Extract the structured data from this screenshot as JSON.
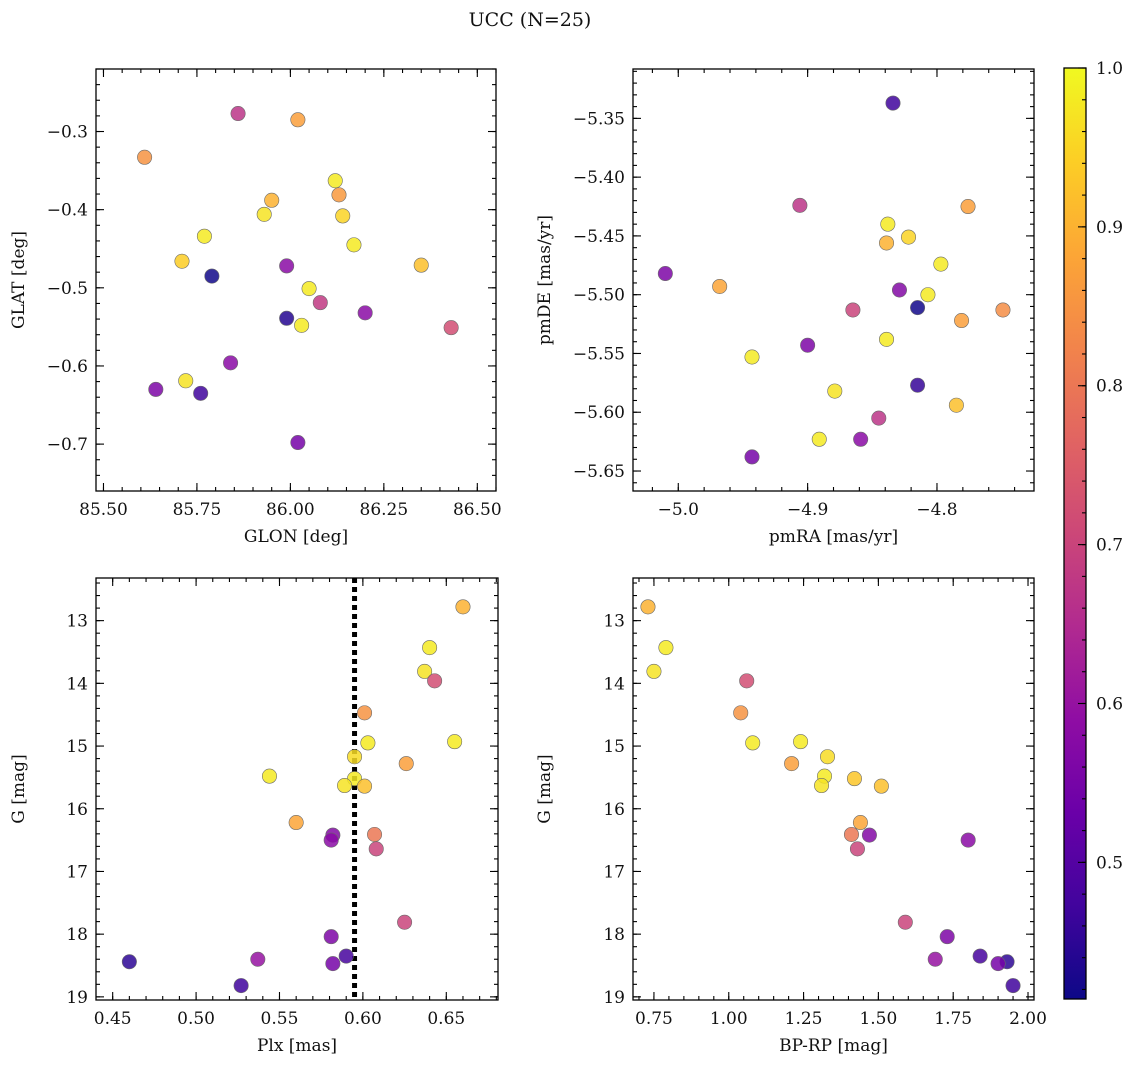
{
  "title": "UCC (N=25)",
  "colorbar": {
    "colormap": "plasma",
    "range": [
      0.414,
      1.0
    ],
    "ticks": [
      0.5,
      0.6,
      0.7,
      0.8,
      0.9,
      1.0
    ],
    "tick_labels": [
      "0.5",
      "0.6",
      "0.7",
      "0.8",
      "0.9",
      "1.0"
    ]
  },
  "chart_data": [
    {
      "type": "scatter",
      "xlabel": "GLON [deg]",
      "ylabel": "GLAT [deg]",
      "xlim": [
        85.48,
        86.55
      ],
      "ylim": [
        -0.76,
        -0.22
      ],
      "xticks": [
        85.5,
        85.75,
        86.0,
        86.25,
        86.5
      ],
      "xtick_labels": [
        "85.50",
        "85.75",
        "86.00",
        "86.25",
        "86.50"
      ],
      "yticks": [
        -0.3,
        -0.4,
        -0.5,
        -0.6,
        -0.7
      ],
      "ytick_labels": [
        "−0.3",
        "−0.4",
        "−0.5",
        "−0.6",
        "−0.7"
      ],
      "y_inverted": false,
      "points": [
        {
          "x": 85.86,
          "y": -0.277,
          "c": 0.67
        },
        {
          "x": 86.02,
          "y": -0.285,
          "c": 0.87
        },
        {
          "x": 85.61,
          "y": -0.333,
          "c": 0.85
        },
        {
          "x": 86.12,
          "y": -0.363,
          "c": 0.98
        },
        {
          "x": 86.13,
          "y": -0.381,
          "c": 0.86
        },
        {
          "x": 85.95,
          "y": -0.388,
          "c": 0.9
        },
        {
          "x": 85.93,
          "y": -0.406,
          "c": 0.97
        },
        {
          "x": 86.14,
          "y": -0.408,
          "c": 0.95
        },
        {
          "x": 85.77,
          "y": -0.434,
          "c": 0.98
        },
        {
          "x": 86.17,
          "y": -0.445,
          "c": 0.98
        },
        {
          "x": 85.71,
          "y": -0.466,
          "c": 0.94
        },
        {
          "x": 85.99,
          "y": -0.472,
          "c": 0.58
        },
        {
          "x": 86.35,
          "y": -0.471,
          "c": 0.92
        },
        {
          "x": 85.79,
          "y": -0.485,
          "c": 0.42
        },
        {
          "x": 86.05,
          "y": -0.501,
          "c": 0.98
        },
        {
          "x": 86.08,
          "y": -0.519,
          "c": 0.68
        },
        {
          "x": 86.2,
          "y": -0.532,
          "c": 0.58
        },
        {
          "x": 85.99,
          "y": -0.539,
          "c": 0.44
        },
        {
          "x": 86.03,
          "y": -0.548,
          "c": 0.98
        },
        {
          "x": 86.43,
          "y": -0.551,
          "c": 0.72
        },
        {
          "x": 85.84,
          "y": -0.596,
          "c": 0.58
        },
        {
          "x": 85.72,
          "y": -0.619,
          "c": 0.97
        },
        {
          "x": 85.64,
          "y": -0.63,
          "c": 0.56
        },
        {
          "x": 85.76,
          "y": -0.635,
          "c": 0.47
        },
        {
          "x": 86.02,
          "y": -0.698,
          "c": 0.55
        }
      ]
    },
    {
      "type": "scatter",
      "xlabel": "pmRA [mas/yr]",
      "ylabel": "pmDE [mas/yr]",
      "xlim": [
        -5.035,
        -4.725
      ],
      "ylim": [
        -5.667,
        -5.308
      ],
      "xticks": [
        -5.0,
        -4.9,
        -4.8
      ],
      "xtick_labels": [
        "−5.0",
        "−4.9",
        "−4.8"
      ],
      "yticks": [
        -5.35,
        -5.4,
        -5.45,
        -5.5,
        -5.55,
        -5.6,
        -5.65
      ],
      "ytick_labels": [
        "−5.35",
        "−5.40",
        "−5.45",
        "−5.50",
        "−5.55",
        "−5.60",
        "−5.65"
      ],
      "y_inverted": false,
      "points": [
        {
          "x": -4.834,
          "y": -5.337,
          "c": 0.47
        },
        {
          "x": -4.906,
          "y": -5.424,
          "c": 0.67
        },
        {
          "x": -4.776,
          "y": -5.425,
          "c": 0.87
        },
        {
          "x": -4.838,
          "y": -5.44,
          "c": 0.98
        },
        {
          "x": -4.822,
          "y": -5.451,
          "c": 0.95
        },
        {
          "x": -4.839,
          "y": -5.456,
          "c": 0.9
        },
        {
          "x": -4.797,
          "y": -5.474,
          "c": 0.98
        },
        {
          "x": -5.01,
          "y": -5.482,
          "c": 0.56
        },
        {
          "x": -4.968,
          "y": -5.493,
          "c": 0.88
        },
        {
          "x": -4.829,
          "y": -5.496,
          "c": 0.57
        },
        {
          "x": -4.807,
          "y": -5.5,
          "c": 0.98
        },
        {
          "x": -4.815,
          "y": -5.511,
          "c": 0.42
        },
        {
          "x": -4.865,
          "y": -5.513,
          "c": 0.7
        },
        {
          "x": -4.749,
          "y": -5.513,
          "c": 0.84
        },
        {
          "x": -4.781,
          "y": -5.522,
          "c": 0.87
        },
        {
          "x": -4.839,
          "y": -5.538,
          "c": 0.98
        },
        {
          "x": -4.9,
          "y": -5.543,
          "c": 0.56
        },
        {
          "x": -4.943,
          "y": -5.553,
          "c": 0.98
        },
        {
          "x": -4.815,
          "y": -5.577,
          "c": 0.46
        },
        {
          "x": -4.879,
          "y": -5.582,
          "c": 0.97
        },
        {
          "x": -4.785,
          "y": -5.594,
          "c": 0.92
        },
        {
          "x": -4.845,
          "y": -5.605,
          "c": 0.67
        },
        {
          "x": -4.891,
          "y": -5.623,
          "c": 0.98
        },
        {
          "x": -4.859,
          "y": -5.623,
          "c": 0.58
        },
        {
          "x": -4.943,
          "y": -5.638,
          "c": 0.55
        }
      ]
    },
    {
      "type": "scatter",
      "xlabel": "Plx [mas]",
      "ylabel": "G [mag]",
      "xlim": [
        0.44,
        0.681
      ],
      "ylim": [
        12.32,
        19.05
      ],
      "xticks": [
        0.45,
        0.5,
        0.55,
        0.6,
        0.65
      ],
      "xtick_labels": [
        "0.45",
        "0.50",
        "0.55",
        "0.60",
        "0.65"
      ],
      "yticks": [
        13,
        14,
        15,
        16,
        17,
        18,
        19
      ],
      "ytick_labels": [
        "13",
        "14",
        "15",
        "16",
        "17",
        "18",
        "19"
      ],
      "y_inverted": true,
      "vline": {
        "x": 0.595,
        "style": "dotted"
      },
      "points": [
        {
          "x": 0.66,
          "y": 12.78,
          "c": 0.9
        },
        {
          "x": 0.64,
          "y": 13.43,
          "c": 0.98
        },
        {
          "x": 0.637,
          "y": 13.81,
          "c": 0.97
        },
        {
          "x": 0.643,
          "y": 13.96,
          "c": 0.72
        },
        {
          "x": 0.601,
          "y": 14.47,
          "c": 0.85
        },
        {
          "x": 0.603,
          "y": 14.95,
          "c": 0.98
        },
        {
          "x": 0.655,
          "y": 14.93,
          "c": 0.98
        },
        {
          "x": 0.595,
          "y": 15.17,
          "c": 0.96
        },
        {
          "x": 0.626,
          "y": 15.28,
          "c": 0.87
        },
        {
          "x": 0.544,
          "y": 15.48,
          "c": 0.98
        },
        {
          "x": 0.595,
          "y": 15.52,
          "c": 0.98
        },
        {
          "x": 0.589,
          "y": 15.63,
          "c": 0.97
        },
        {
          "x": 0.601,
          "y": 15.64,
          "c": 0.92
        },
        {
          "x": 0.56,
          "y": 16.22,
          "c": 0.88
        },
        {
          "x": 0.582,
          "y": 16.42,
          "c": 0.57
        },
        {
          "x": 0.607,
          "y": 16.41,
          "c": 0.8
        },
        {
          "x": 0.581,
          "y": 16.5,
          "c": 0.58
        },
        {
          "x": 0.608,
          "y": 16.64,
          "c": 0.7
        },
        {
          "x": 0.625,
          "y": 17.81,
          "c": 0.7
        },
        {
          "x": 0.581,
          "y": 18.04,
          "c": 0.56
        },
        {
          "x": 0.59,
          "y": 18.35,
          "c": 0.48
        },
        {
          "x": 0.537,
          "y": 18.4,
          "c": 0.6
        },
        {
          "x": 0.46,
          "y": 18.44,
          "c": 0.45
        },
        {
          "x": 0.582,
          "y": 18.47,
          "c": 0.55
        },
        {
          "x": 0.527,
          "y": 18.82,
          "c": 0.47
        }
      ]
    },
    {
      "type": "scatter",
      "xlabel": "BP-RP [mag]",
      "ylabel": "G [mag]",
      "xlim": [
        0.68,
        2.02
      ],
      "ylim": [
        12.32,
        19.05
      ],
      "xticks": [
        0.75,
        1.0,
        1.25,
        1.5,
        1.75,
        2.0
      ],
      "xtick_labels": [
        "0.75",
        "1.00",
        "1.25",
        "1.50",
        "1.75",
        "2.00"
      ],
      "yticks": [
        13,
        14,
        15,
        16,
        17,
        18,
        19
      ],
      "ytick_labels": [
        "13",
        "14",
        "15",
        "16",
        "17",
        "18",
        "19"
      ],
      "y_inverted": true,
      "points": [
        {
          "x": 0.73,
          "y": 12.78,
          "c": 0.9
        },
        {
          "x": 0.79,
          "y": 13.43,
          "c": 0.98
        },
        {
          "x": 0.75,
          "y": 13.81,
          "c": 0.97
        },
        {
          "x": 1.06,
          "y": 13.96,
          "c": 0.72
        },
        {
          "x": 1.04,
          "y": 14.47,
          "c": 0.85
        },
        {
          "x": 1.08,
          "y": 14.95,
          "c": 0.98
        },
        {
          "x": 1.24,
          "y": 14.93,
          "c": 0.98
        },
        {
          "x": 1.33,
          "y": 15.17,
          "c": 0.96
        },
        {
          "x": 1.21,
          "y": 15.28,
          "c": 0.87
        },
        {
          "x": 1.32,
          "y": 15.48,
          "c": 0.98
        },
        {
          "x": 1.42,
          "y": 15.52,
          "c": 0.93
        },
        {
          "x": 1.31,
          "y": 15.63,
          "c": 0.97
        },
        {
          "x": 1.51,
          "y": 15.64,
          "c": 0.92
        },
        {
          "x": 1.44,
          "y": 16.22,
          "c": 0.88
        },
        {
          "x": 1.41,
          "y": 16.41,
          "c": 0.8
        },
        {
          "x": 1.47,
          "y": 16.42,
          "c": 0.57
        },
        {
          "x": 1.43,
          "y": 16.64,
          "c": 0.7
        },
        {
          "x": 1.8,
          "y": 16.5,
          "c": 0.58
        },
        {
          "x": 1.59,
          "y": 17.81,
          "c": 0.7
        },
        {
          "x": 1.73,
          "y": 18.04,
          "c": 0.56
        },
        {
          "x": 1.84,
          "y": 18.35,
          "c": 0.48
        },
        {
          "x": 1.69,
          "y": 18.4,
          "c": 0.6
        },
        {
          "x": 1.93,
          "y": 18.44,
          "c": 0.45
        },
        {
          "x": 1.9,
          "y": 18.47,
          "c": 0.55
        },
        {
          "x": 1.95,
          "y": 18.82,
          "c": 0.47
        }
      ]
    }
  ]
}
